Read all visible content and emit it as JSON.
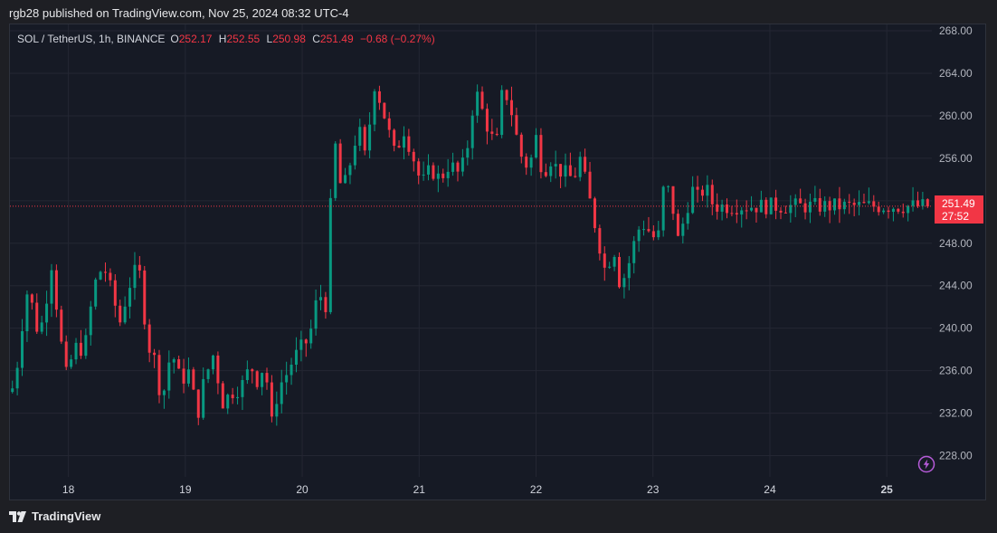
{
  "header": {
    "published": "rgb28 published on TradingView.com, Nov 25, 2024 08:32 UTC-4"
  },
  "legend": {
    "symbol": "SOL / TetherUS, 1h, BINANCE",
    "o_label": "O",
    "o": "252.17",
    "h_label": "H",
    "h": "252.55",
    "l_label": "L",
    "l": "250.98",
    "c_label": "C",
    "c": "251.49",
    "change": "−0.68 (−0.27%)"
  },
  "price_tag": {
    "price": "251.49",
    "countdown": "27:52"
  },
  "brand": {
    "name": "TradingView"
  },
  "icons": {
    "alert": "lightning-icon",
    "logo": "tradingview-logo-icon"
  },
  "colors": {
    "up": "#089981",
    "down": "#f23645",
    "background": "#161a25",
    "grid": "#242733"
  },
  "chart_data": {
    "type": "candlestick",
    "symbol": "SOL / TetherUS",
    "interval": "1h",
    "exchange": "BINANCE",
    "ylim": [
      226.0,
      268.6
    ],
    "y_ticks": [
      "268.00",
      "264.00",
      "260.00",
      "256.00",
      "252.00",
      "248.00",
      "244.00",
      "240.00",
      "236.00",
      "232.00",
      "228.00"
    ],
    "x_ticks": [
      {
        "label": "18",
        "t": 2.5
      },
      {
        "label": "19",
        "t": 3.5
      },
      {
        "label": "20",
        "t": 4.5
      },
      {
        "label": "21",
        "t": 5.5
      },
      {
        "label": "22",
        "t": 6.5
      },
      {
        "label": "23",
        "t": 7.5
      },
      {
        "label": "24",
        "t": 8.5
      },
      {
        "label": "25",
        "t": 9.5
      }
    ],
    "t_range": [
      2.0,
      9.87
    ],
    "last_price": 251.49,
    "anchors": [
      [
        2.0,
        234.0
      ],
      [
        2.06,
        234.5
      ],
      [
        2.12,
        240.0
      ],
      [
        2.18,
        244.2
      ],
      [
        2.24,
        240.0
      ],
      [
        2.3,
        240.5
      ],
      [
        2.38,
        246.3
      ],
      [
        2.44,
        240.0
      ],
      [
        2.5,
        235.5
      ],
      [
        2.58,
        238.2
      ],
      [
        2.66,
        238.0
      ],
      [
        2.74,
        244.0
      ],
      [
        2.82,
        246.0
      ],
      [
        2.9,
        243.0
      ],
      [
        2.96,
        240.5
      ],
      [
        3.04,
        244.0
      ],
      [
        3.12,
        246.0
      ],
      [
        3.2,
        238.5
      ],
      [
        3.26,
        237.0
      ],
      [
        3.32,
        233.0
      ],
      [
        3.4,
        238.0
      ],
      [
        3.48,
        235.0
      ],
      [
        3.56,
        236.0
      ],
      [
        3.62,
        231.5
      ],
      [
        3.68,
        235.0
      ],
      [
        3.76,
        237.5
      ],
      [
        3.84,
        233.0
      ],
      [
        3.92,
        234.0
      ],
      [
        4.0,
        234.5
      ],
      [
        4.08,
        236.5
      ],
      [
        4.14,
        235.0
      ],
      [
        4.2,
        236.8
      ],
      [
        4.26,
        231.0
      ],
      [
        4.32,
        234.5
      ],
      [
        4.38,
        235.5
      ],
      [
        4.44,
        237.0
      ],
      [
        4.5,
        238.0
      ],
      [
        4.58,
        239.0
      ],
      [
        4.66,
        243.5
      ],
      [
        4.72,
        242.0
      ],
      [
        4.76,
        251.0
      ],
      [
        4.8,
        257.5
      ],
      [
        4.86,
        252.5
      ],
      [
        4.92,
        255.0
      ],
      [
        5.0,
        259.0
      ],
      [
        5.06,
        256.0
      ],
      [
        5.14,
        263.0
      ],
      [
        5.2,
        261.0
      ],
      [
        5.26,
        258.5
      ],
      [
        5.32,
        256.0
      ],
      [
        5.38,
        259.0
      ],
      [
        5.46,
        256.5
      ],
      [
        5.54,
        253.5
      ],
      [
        5.62,
        255.0
      ],
      [
        5.7,
        254.0
      ],
      [
        5.78,
        255.5
      ],
      [
        5.86,
        254.5
      ],
      [
        5.92,
        256.0
      ],
      [
        6.0,
        262.5
      ],
      [
        6.06,
        260.5
      ],
      [
        6.12,
        258.5
      ],
      [
        6.18,
        257.0
      ],
      [
        6.24,
        263.0
      ],
      [
        6.32,
        260.0
      ],
      [
        6.38,
        256.5
      ],
      [
        6.46,
        255.0
      ],
      [
        6.52,
        258.0
      ],
      [
        6.58,
        254.5
      ],
      [
        6.64,
        256.0
      ],
      [
        6.7,
        255.0
      ],
      [
        6.78,
        254.5
      ],
      [
        6.84,
        254.0
      ],
      [
        6.9,
        256.0
      ],
      [
        7.0,
        251.0
      ],
      [
        7.06,
        248.0
      ],
      [
        7.12,
        245.0
      ],
      [
        7.18,
        248.0
      ],
      [
        7.24,
        244.0
      ],
      [
        7.3,
        245.5
      ],
      [
        7.36,
        248.0
      ],
      [
        7.42,
        250.0
      ],
      [
        7.5,
        249.0
      ],
      [
        7.56,
        248.0
      ],
      [
        7.62,
        254.0
      ],
      [
        7.68,
        252.0
      ],
      [
        7.74,
        248.0
      ],
      [
        7.8,
        251.0
      ],
      [
        7.86,
        253.0
      ],
      [
        7.92,
        252.0
      ],
      [
        7.96,
        253.5
      ],
      [
        8.04,
        251.5
      ]
    ]
  }
}
